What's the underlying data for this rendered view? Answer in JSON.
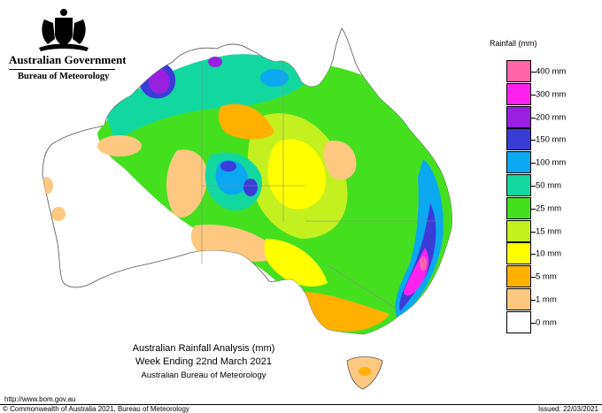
{
  "header": {
    "government": "Australian Government",
    "agency": "Bureau of Meteorology"
  },
  "legend": {
    "title": "Rainfall (mm)",
    "items": [
      {
        "label": "400 mm",
        "color": "#ff66aa"
      },
      {
        "label": "300 mm",
        "color": "#ff22ee"
      },
      {
        "label": "200 mm",
        "color": "#9a20e0"
      },
      {
        "label": "150 mm",
        "color": "#3a3cd8"
      },
      {
        "label": "100 mm",
        "color": "#0aa8f0"
      },
      {
        "label": "50 mm",
        "color": "#12d8a0"
      },
      {
        "label": "25 mm",
        "color": "#44e020"
      },
      {
        "label": "15 mm",
        "color": "#c4f020"
      },
      {
        "label": "10 mm",
        "color": "#ffff00"
      },
      {
        "label": "5 mm",
        "color": "#ffb000"
      },
      {
        "label": "1 mm",
        "color": "#ffc880"
      },
      {
        "label": "0 mm",
        "color": "#ffffff"
      }
    ]
  },
  "caption": {
    "line1": "Australian Rainfall Analysis (mm)",
    "line2": "Week Ending 22nd March 2021",
    "line3": "Australian Bureau of Meteorology"
  },
  "footer": {
    "url": "http://www.bom.gov.au",
    "copyright": "© Commonwealth of Australia 2021, Bureau of Meteorology",
    "issued": "Issued: 22/03/2021"
  }
}
